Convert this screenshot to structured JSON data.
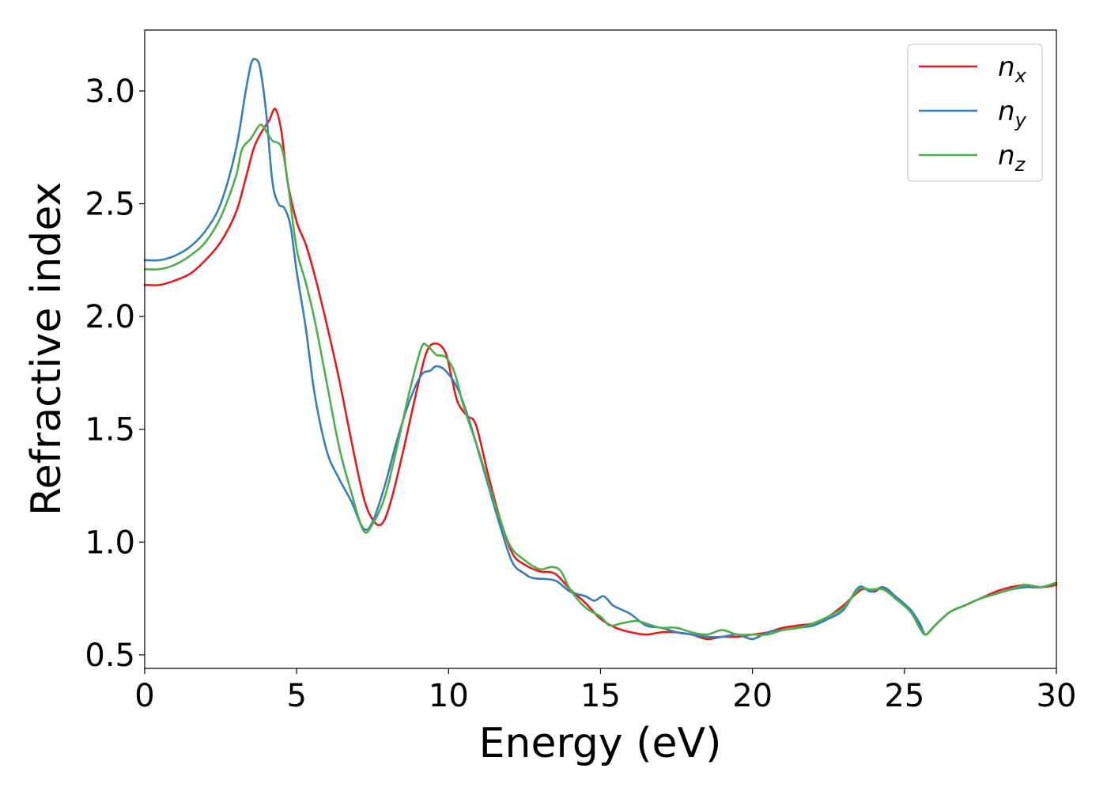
{
  "chart_data": {
    "type": "line",
    "xlabel": "Energy (eV)",
    "ylabel": "Refractive index",
    "xlim": [
      0,
      30
    ],
    "ylim": [
      0.44,
      3.27
    ],
    "xticks": [
      0,
      5,
      10,
      15,
      20,
      25,
      30
    ],
    "yticks": [
      0.5,
      1.0,
      1.5,
      2.0,
      2.5,
      3.0
    ],
    "xtick_labels": [
      "0",
      "5",
      "10",
      "15",
      "20",
      "25",
      "30"
    ],
    "ytick_labels": [
      "0.5",
      "1.0",
      "1.5",
      "2.0",
      "2.5",
      "3.0"
    ],
    "grid": false,
    "legend_position": "top-right",
    "series": [
      {
        "name": "n_x",
        "label_main": "n",
        "label_sub": "x",
        "color": "#e41a1c",
        "points": [
          [
            0,
            2.14
          ],
          [
            0.5,
            2.14
          ],
          [
            1,
            2.16
          ],
          [
            1.5,
            2.19
          ],
          [
            2,
            2.25
          ],
          [
            2.5,
            2.33
          ],
          [
            3,
            2.46
          ],
          [
            3.3,
            2.6
          ],
          [
            3.6,
            2.75
          ],
          [
            3.9,
            2.83
          ],
          [
            4.1,
            2.87
          ],
          [
            4.3,
            2.92
          ],
          [
            4.5,
            2.82
          ],
          [
            4.7,
            2.6
          ],
          [
            5,
            2.42
          ],
          [
            5.3,
            2.32
          ],
          [
            5.6,
            2.18
          ],
          [
            6,
            1.96
          ],
          [
            6.4,
            1.72
          ],
          [
            6.8,
            1.45
          ],
          [
            7.2,
            1.2
          ],
          [
            7.5,
            1.1
          ],
          [
            7.8,
            1.08
          ],
          [
            8.1,
            1.18
          ],
          [
            8.5,
            1.4
          ],
          [
            9,
            1.7
          ],
          [
            9.3,
            1.85
          ],
          [
            9.6,
            1.88
          ],
          [
            9.9,
            1.84
          ],
          [
            10.1,
            1.73
          ],
          [
            10.3,
            1.62
          ],
          [
            10.6,
            1.56
          ],
          [
            10.9,
            1.52
          ],
          [
            11.3,
            1.3
          ],
          [
            11.7,
            1.1
          ],
          [
            12.1,
            0.95
          ],
          [
            12.5,
            0.9
          ],
          [
            13,
            0.87
          ],
          [
            13.5,
            0.86
          ],
          [
            14,
            0.79
          ],
          [
            14.5,
            0.73
          ],
          [
            15,
            0.66
          ],
          [
            15.5,
            0.62
          ],
          [
            16,
            0.6
          ],
          [
            16.5,
            0.59
          ],
          [
            17,
            0.6
          ],
          [
            17.5,
            0.6
          ],
          [
            18,
            0.59
          ],
          [
            18.5,
            0.57
          ],
          [
            19,
            0.58
          ],
          [
            19.5,
            0.58
          ],
          [
            20,
            0.59
          ],
          [
            20.5,
            0.6
          ],
          [
            21,
            0.62
          ],
          [
            21.5,
            0.63
          ],
          [
            22,
            0.64
          ],
          [
            22.5,
            0.67
          ],
          [
            23,
            0.72
          ],
          [
            23.6,
            0.79
          ],
          [
            24,
            0.78
          ],
          [
            24.3,
            0.8
          ],
          [
            24.7,
            0.75
          ],
          [
            25.2,
            0.7
          ],
          [
            25.5,
            0.63
          ],
          [
            25.7,
            0.59
          ],
          [
            26,
            0.63
          ],
          [
            26.5,
            0.69
          ],
          [
            27,
            0.72
          ],
          [
            27.5,
            0.75
          ],
          [
            28,
            0.78
          ],
          [
            28.5,
            0.8
          ],
          [
            29,
            0.81
          ],
          [
            29.5,
            0.8
          ],
          [
            30,
            0.81
          ]
        ]
      },
      {
        "name": "n_y",
        "label_main": "n",
        "label_sub": "y",
        "color": "#377eb8",
        "points": [
          [
            0,
            2.25
          ],
          [
            0.5,
            2.25
          ],
          [
            1,
            2.27
          ],
          [
            1.5,
            2.31
          ],
          [
            2,
            2.38
          ],
          [
            2.5,
            2.5
          ],
          [
            3,
            2.74
          ],
          [
            3.3,
            2.98
          ],
          [
            3.5,
            3.12
          ],
          [
            3.65,
            3.14
          ],
          [
            3.8,
            3.1
          ],
          [
            4,
            2.9
          ],
          [
            4.2,
            2.6
          ],
          [
            4.4,
            2.5
          ],
          [
            4.6,
            2.48
          ],
          [
            4.8,
            2.4
          ],
          [
            5,
            2.2
          ],
          [
            5.3,
            1.95
          ],
          [
            5.6,
            1.65
          ],
          [
            6,
            1.4
          ],
          [
            6.4,
            1.28
          ],
          [
            6.8,
            1.18
          ],
          [
            7.2,
            1.06
          ],
          [
            7.5,
            1.09
          ],
          [
            7.9,
            1.25
          ],
          [
            8.3,
            1.45
          ],
          [
            8.7,
            1.62
          ],
          [
            9.1,
            1.74
          ],
          [
            9.4,
            1.76
          ],
          [
            9.6,
            1.78
          ],
          [
            9.9,
            1.76
          ],
          [
            10.3,
            1.68
          ],
          [
            10.7,
            1.53
          ],
          [
            11.2,
            1.3
          ],
          [
            11.7,
            1.07
          ],
          [
            12.1,
            0.91
          ],
          [
            12.5,
            0.86
          ],
          [
            12.8,
            0.84
          ],
          [
            13.5,
            0.83
          ],
          [
            14,
            0.78
          ],
          [
            14.5,
            0.76
          ],
          [
            14.8,
            0.74
          ],
          [
            15.1,
            0.76
          ],
          [
            15.4,
            0.72
          ],
          [
            15.7,
            0.7
          ],
          [
            16,
            0.68
          ],
          [
            16.5,
            0.63
          ],
          [
            17,
            0.62
          ],
          [
            17.5,
            0.6
          ],
          [
            18,
            0.59
          ],
          [
            18.5,
            0.58
          ],
          [
            19,
            0.58
          ],
          [
            19.5,
            0.59
          ],
          [
            20,
            0.57
          ],
          [
            20.5,
            0.6
          ],
          [
            21,
            0.61
          ],
          [
            21.5,
            0.62
          ],
          [
            22,
            0.63
          ],
          [
            22.5,
            0.66
          ],
          [
            23,
            0.7
          ],
          [
            23.5,
            0.8
          ],
          [
            23.9,
            0.78
          ],
          [
            24.3,
            0.8
          ],
          [
            24.7,
            0.76
          ],
          [
            25.2,
            0.7
          ],
          [
            25.5,
            0.64
          ],
          [
            25.7,
            0.59
          ],
          [
            26,
            0.63
          ],
          [
            26.5,
            0.69
          ],
          [
            27,
            0.72
          ],
          [
            27.5,
            0.75
          ],
          [
            28,
            0.77
          ],
          [
            28.5,
            0.79
          ],
          [
            29,
            0.8
          ],
          [
            29.5,
            0.8
          ],
          [
            30,
            0.82
          ]
        ]
      },
      {
        "name": "n_z",
        "label_main": "n",
        "label_sub": "z",
        "color": "#4daf4a",
        "points": [
          [
            0,
            2.21
          ],
          [
            0.5,
            2.21
          ],
          [
            1,
            2.23
          ],
          [
            1.5,
            2.27
          ],
          [
            2,
            2.33
          ],
          [
            2.5,
            2.44
          ],
          [
            3,
            2.62
          ],
          [
            3.2,
            2.74
          ],
          [
            3.5,
            2.79
          ],
          [
            3.8,
            2.85
          ],
          [
            4,
            2.82
          ],
          [
            4.2,
            2.78
          ],
          [
            4.5,
            2.75
          ],
          [
            4.7,
            2.6
          ],
          [
            5,
            2.3
          ],
          [
            5.3,
            2.15
          ],
          [
            5.6,
            1.98
          ],
          [
            6,
            1.7
          ],
          [
            6.4,
            1.42
          ],
          [
            6.8,
            1.22
          ],
          [
            7.2,
            1.05
          ],
          [
            7.5,
            1.08
          ],
          [
            7.9,
            1.2
          ],
          [
            8.3,
            1.42
          ],
          [
            8.7,
            1.66
          ],
          [
            9.1,
            1.86
          ],
          [
            9.3,
            1.87
          ],
          [
            9.6,
            1.83
          ],
          [
            9.9,
            1.82
          ],
          [
            10.2,
            1.75
          ],
          [
            10.5,
            1.6
          ],
          [
            11,
            1.4
          ],
          [
            11.5,
            1.18
          ],
          [
            12,
            0.99
          ],
          [
            12.5,
            0.92
          ],
          [
            13,
            0.88
          ],
          [
            13.4,
            0.89
          ],
          [
            13.7,
            0.87
          ],
          [
            14,
            0.79
          ],
          [
            14.5,
            0.71
          ],
          [
            15,
            0.67
          ],
          [
            15.3,
            0.63
          ],
          [
            15.7,
            0.64
          ],
          [
            16.2,
            0.65
          ],
          [
            16.7,
            0.63
          ],
          [
            17,
            0.62
          ],
          [
            17.5,
            0.62
          ],
          [
            18,
            0.6
          ],
          [
            18.5,
            0.59
          ],
          [
            19,
            0.61
          ],
          [
            19.5,
            0.59
          ],
          [
            20,
            0.59
          ],
          [
            20.5,
            0.59
          ],
          [
            21,
            0.61
          ],
          [
            21.5,
            0.62
          ],
          [
            22,
            0.64
          ],
          [
            22.5,
            0.67
          ],
          [
            23,
            0.71
          ],
          [
            23.5,
            0.79
          ],
          [
            23.9,
            0.79
          ],
          [
            24.3,
            0.79
          ],
          [
            24.7,
            0.75
          ],
          [
            25.2,
            0.69
          ],
          [
            25.5,
            0.62
          ],
          [
            25.7,
            0.59
          ],
          [
            26,
            0.63
          ],
          [
            26.5,
            0.69
          ],
          [
            27,
            0.72
          ],
          [
            27.5,
            0.75
          ],
          [
            28,
            0.77
          ],
          [
            28.5,
            0.79
          ],
          [
            29,
            0.81
          ],
          [
            29.5,
            0.8
          ],
          [
            30,
            0.82
          ]
        ]
      }
    ]
  }
}
